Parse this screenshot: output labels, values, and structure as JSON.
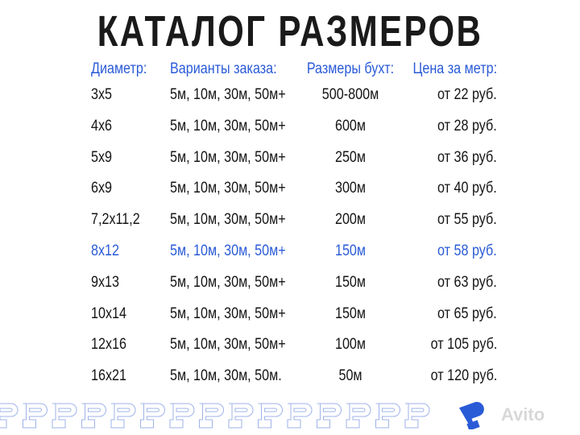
{
  "title": "КАТАЛОГ РАЗМЕРОВ",
  "table": {
    "headers": [
      "Диаметр:",
      "Варианты заказа:",
      "Размеры бухт:",
      "Цена за метр:"
    ],
    "rows": [
      [
        "3x5",
        "5м, 10м, 30м, 50м+",
        "500-800м",
        "от 22 руб."
      ],
      [
        "4x6",
        "5м, 10м, 30м, 50м+",
        "600м",
        "от 28 руб."
      ],
      [
        "5x9",
        "5м, 10м, 30м, 50м+",
        "250м",
        "от 36 руб."
      ],
      [
        "6x9",
        "5м, 10м, 30м, 50м+",
        "300м",
        "от 40 руб."
      ],
      [
        "7,2x11,2",
        "5м, 10м, 30м, 50м+",
        "200м",
        "от 55 руб."
      ],
      [
        "8x12",
        "5м, 10м, 30м, 50м+",
        "150м",
        "от 58 руб."
      ],
      [
        "9x13",
        "5м, 10м, 30м, 50м+",
        "150м",
        "от 63 руб."
      ],
      [
        "10x14",
        "5м, 10м, 30м, 50м+",
        "150м",
        "от 65 руб."
      ],
      [
        "12x16",
        "5м, 10м, 30м, 50м+",
        "100м",
        "от 105 руб."
      ],
      [
        "16x21",
        "5м, 10м, 30м, 50м.",
        "50м",
        "от 120 руб."
      ]
    ],
    "highlighted_row": 5
  },
  "colors": {
    "accent": "#2a5bd7",
    "text": "#151515",
    "pattern_outline": "#9fb3ea"
  },
  "watermark": "Avito"
}
